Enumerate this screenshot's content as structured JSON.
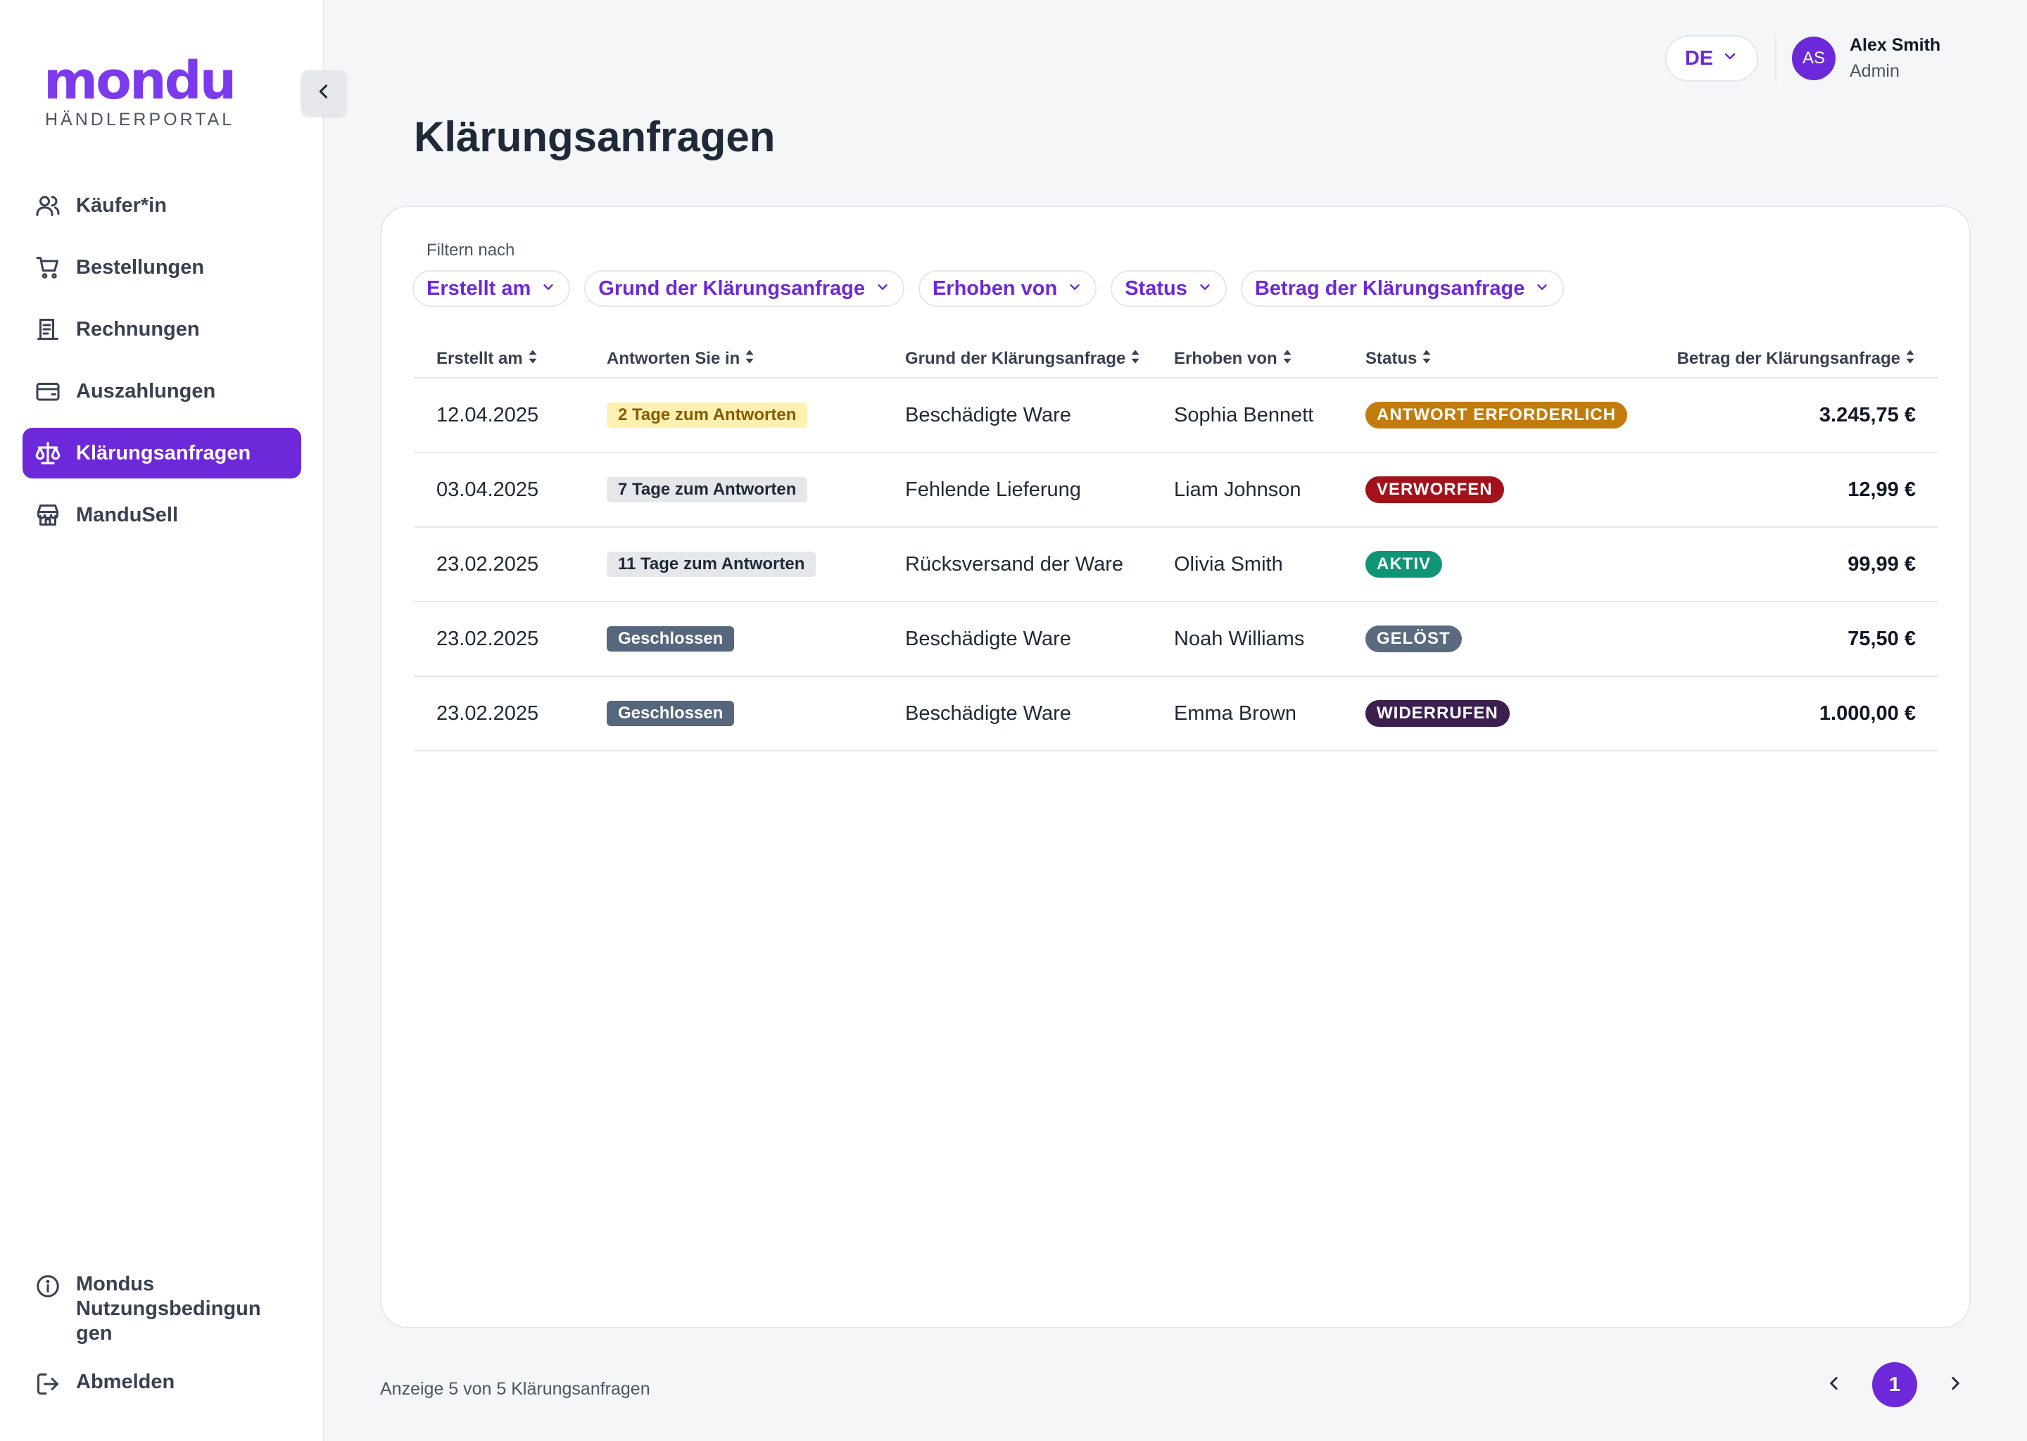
{
  "brand": {
    "logo": "mondu",
    "subtitle": "HÄNDLERPORTAL",
    "accent": "#6d28d9"
  },
  "sidebar": {
    "items": [
      {
        "label": "Käufer*in",
        "icon": "users-icon"
      },
      {
        "label": "Bestellungen",
        "icon": "cart-icon"
      },
      {
        "label": "Rechnungen",
        "icon": "receipt-icon"
      },
      {
        "label": "Auszahlungen",
        "icon": "wallet-icon"
      },
      {
        "label": "Klärungsanfragen",
        "icon": "scale-icon",
        "active": true
      },
      {
        "label": "ManduSell",
        "icon": "store-icon"
      }
    ],
    "bottom": [
      {
        "label": "Mondus Nutzungsbedingun gen",
        "icon": "info-icon"
      },
      {
        "label": "Abmelden",
        "icon": "logout-icon"
      }
    ]
  },
  "header": {
    "language": "DE",
    "user": {
      "initials": "AS",
      "name": "Alex Smith",
      "role": "Admin"
    }
  },
  "page": {
    "title": "Klärungsanfragen"
  },
  "filters": {
    "label": "Filtern nach",
    "chips": [
      "Erstellt am",
      "Grund der Klärungsanfrage",
      "Erhoben von",
      "Status",
      "Betrag der Klärungsanfrage"
    ]
  },
  "table": {
    "columns": [
      "Erstellt am",
      "Antworten Sie in",
      "Grund der Klärungsanfrage",
      "Erhoben von",
      "Status",
      "Betrag der Klärungsanfrage"
    ],
    "rows": [
      {
        "date": "12.04.2025",
        "respond": "2 Tage zum Antworten",
        "respond_style": "warn",
        "reason": "Beschädigte Ware",
        "by": "Sophia Bennett",
        "status": "ANTWORT ERFORDERLICH",
        "status_color": "#c27c0e",
        "amount": "3.245,75 €"
      },
      {
        "date": "03.04.2025",
        "respond": "7 Tage zum Antworten",
        "respond_style": "neutral",
        "reason": "Fehlende Lieferung",
        "by": "Liam Johnson",
        "status": "VERWORFEN",
        "status_color": "#a3111b",
        "amount": "12,99 €"
      },
      {
        "date": "23.02.2025",
        "respond": "11 Tage zum Antworten",
        "respond_style": "neutral",
        "reason": "Rücksversand der Ware",
        "by": "Olivia Smith",
        "status": "AKTIV",
        "status_color": "#0f9575",
        "amount": "99,99 €"
      },
      {
        "date": "23.02.2025",
        "respond": "Geschlossen",
        "respond_style": "closed",
        "reason": "Beschädigte Ware",
        "by": "Noah Williams",
        "status": "GELÖST",
        "status_color": "#5b6b7f",
        "amount": "75,50 €"
      },
      {
        "date": "23.02.2025",
        "respond": "Geschlossen",
        "respond_style": "closed",
        "reason": "Beschädigte Ware",
        "by": "Emma Brown",
        "status": "WIDERRUFEN",
        "status_color": "#3b1f4f",
        "amount": "1.000,00 €"
      }
    ]
  },
  "footer": {
    "info": "Anzeige 5 von 5 Klärungsanfragen",
    "current_page": "1"
  }
}
